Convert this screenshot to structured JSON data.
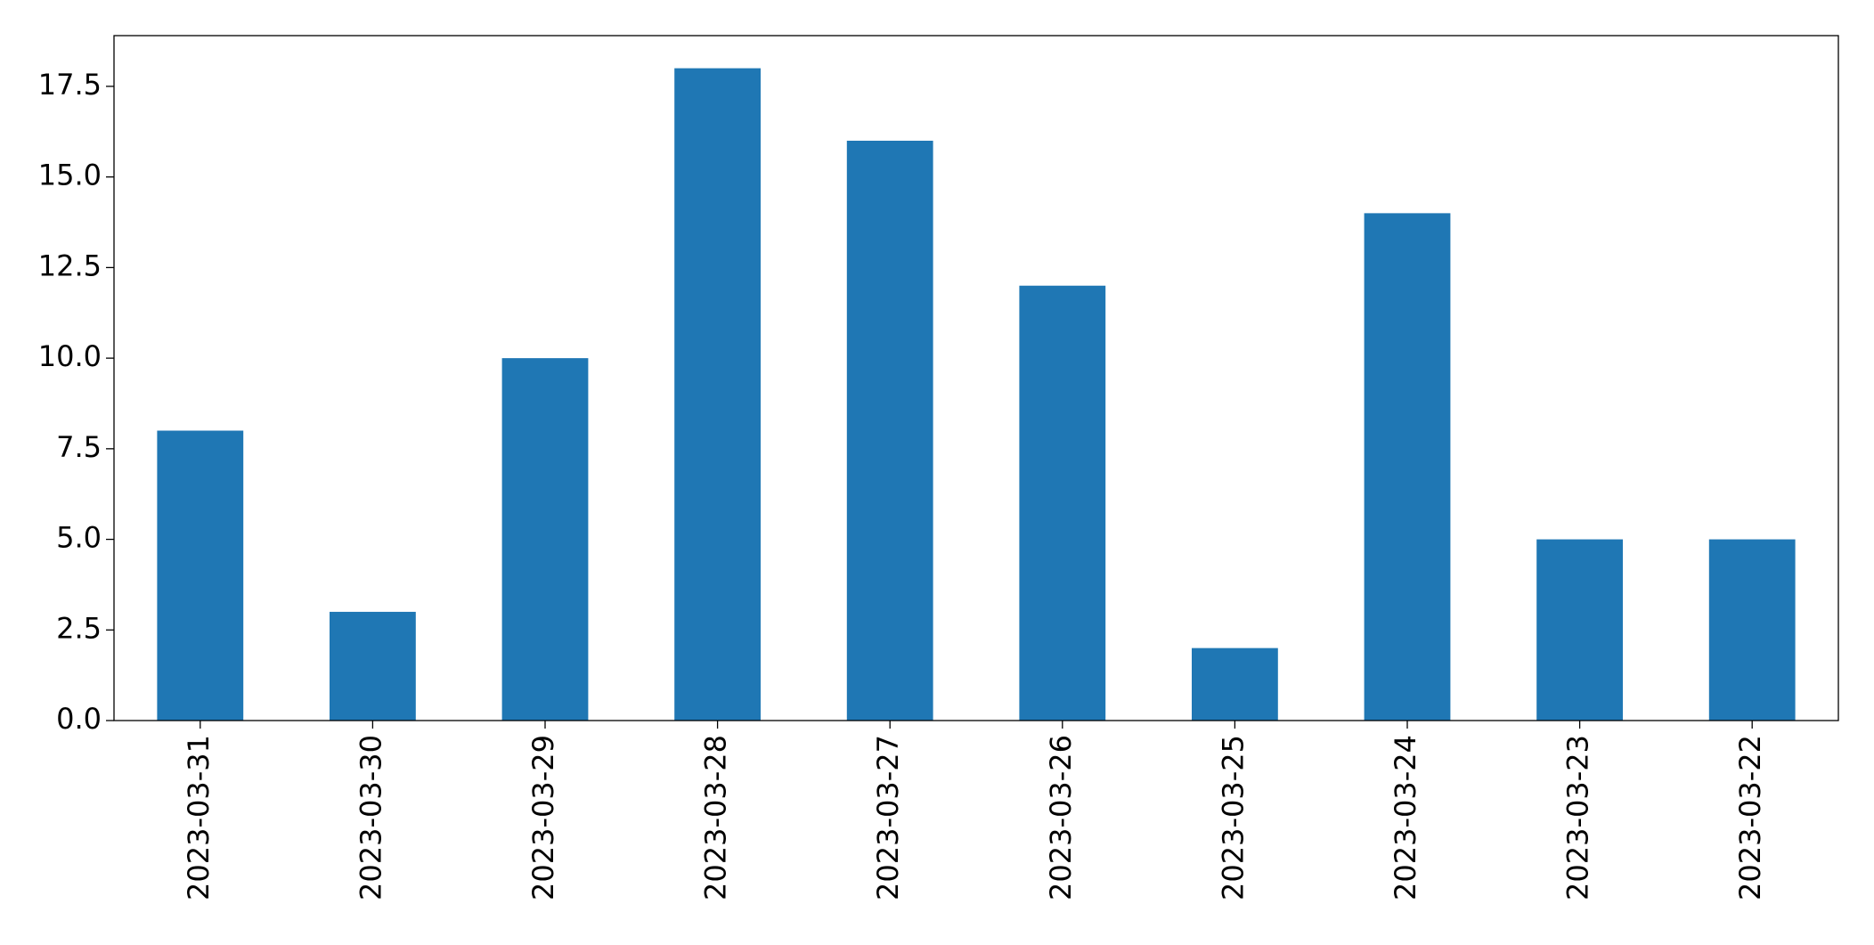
{
  "chart_data": {
    "type": "bar",
    "categories": [
      "2023-03-31",
      "2023-03-30",
      "2023-03-29",
      "2023-03-28",
      "2023-03-27",
      "2023-03-26",
      "2023-03-25",
      "2023-03-24",
      "2023-03-23",
      "2023-03-22"
    ],
    "values": [
      8,
      3,
      10,
      18,
      16,
      12,
      2,
      14,
      5,
      5
    ],
    "color": "#1f77b4",
    "ylim": [
      0,
      18.9
    ],
    "yticks": [
      {
        "value": 0,
        "label": "0.0"
      },
      2.5,
      {
        "value": 5,
        "label": "5.0"
      },
      7.5,
      {
        "value": 10,
        "label": "10.0"
      },
      12.5,
      {
        "value": 15,
        "label": "15.0"
      },
      17.5
    ],
    "grid": false
  }
}
